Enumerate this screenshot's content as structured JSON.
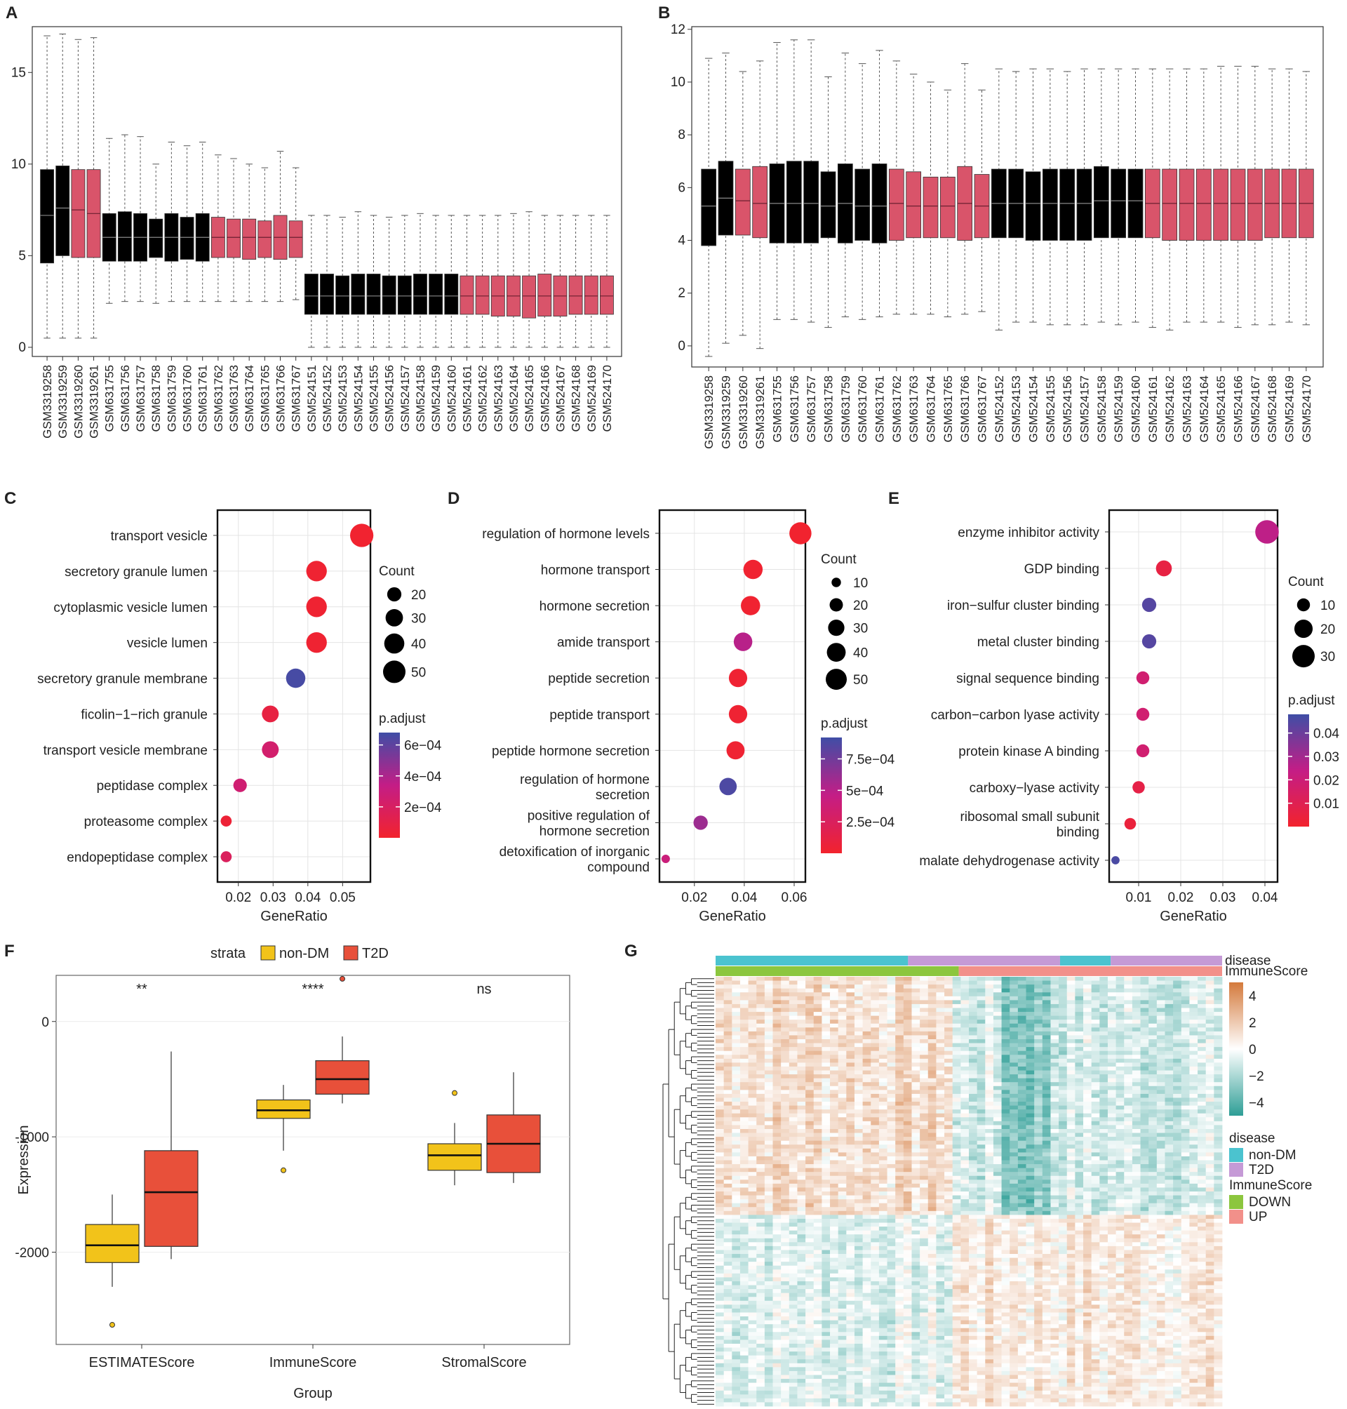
{
  "panels": {
    "A": "A",
    "B": "B",
    "C": "C",
    "D": "D",
    "E": "E",
    "F": "F",
    "G": "G"
  },
  "colors": {
    "black_box": "#000000",
    "pink_box": "#D9546A",
    "nondm": "#F2C31A",
    "t2d": "#E8503A",
    "heat_pos": "#D47A3C",
    "heat_neg": "#2E9E96",
    "nondm_bar": "#4BC3CF",
    "t2d_bar": "#C59AD6",
    "down_bar": "#8CC63E",
    "up_bar": "#F2908A"
  },
  "chart_data": [
    {
      "id": "A",
      "type": "boxplot",
      "ylim": [
        -0.5,
        17.5
      ],
      "yticks": [
        0,
        5,
        10,
        15
      ],
      "samples": [
        "GSM3319258",
        "GSM3319259",
        "GSM3319260",
        "GSM3319261",
        "GSM631755",
        "GSM631756",
        "GSM631757",
        "GSM631758",
        "GSM631759",
        "GSM631760",
        "GSM631761",
        "GSM631762",
        "GSM631763",
        "GSM631764",
        "GSM631765",
        "GSM631766",
        "GSM631767",
        "GSM524151",
        "GSM524152",
        "GSM524153",
        "GSM524154",
        "GSM524155",
        "GSM524156",
        "GSM524157",
        "GSM524158",
        "GSM524159",
        "GSM524160",
        "GSM524161",
        "GSM524162",
        "GSM524163",
        "GSM524164",
        "GSM524165",
        "GSM524166",
        "GSM524167",
        "GSM524168",
        "GSM524169",
        "GSM524170"
      ],
      "groups": [
        "black",
        "black",
        "pink",
        "pink",
        "black",
        "black",
        "black",
        "black",
        "black",
        "black",
        "black",
        "pink",
        "pink",
        "pink",
        "pink",
        "pink",
        "pink",
        "black",
        "black",
        "black",
        "black",
        "black",
        "black",
        "black",
        "black",
        "black",
        "black",
        "pink",
        "pink",
        "pink",
        "pink",
        "pink",
        "pink",
        "pink",
        "pink",
        "pink",
        "pink"
      ],
      "boxes": [
        [
          0.5,
          4.6,
          7.2,
          9.7,
          17.0
        ],
        [
          0.5,
          5.0,
          7.6,
          9.9,
          17.1
        ],
        [
          0.5,
          4.9,
          7.5,
          9.7,
          16.8
        ],
        [
          0.5,
          4.9,
          7.3,
          9.7,
          16.9
        ],
        [
          2.4,
          4.7,
          6.0,
          7.3,
          11.4
        ],
        [
          2.5,
          4.7,
          6.0,
          7.4,
          11.6
        ],
        [
          2.5,
          4.7,
          6.0,
          7.3,
          11.5
        ],
        [
          2.4,
          4.9,
          6.0,
          7.0,
          10.0
        ],
        [
          2.5,
          4.7,
          6.0,
          7.3,
          11.2
        ],
        [
          2.5,
          4.8,
          6.0,
          7.1,
          11.0
        ],
        [
          2.5,
          4.7,
          6.0,
          7.3,
          11.2
        ],
        [
          2.5,
          4.9,
          6.0,
          7.1,
          10.5
        ],
        [
          2.5,
          4.9,
          6.0,
          7.0,
          10.3
        ],
        [
          2.5,
          4.8,
          6.0,
          7.0,
          10.0
        ],
        [
          2.5,
          4.9,
          6.0,
          6.9,
          9.8
        ],
        [
          2.5,
          4.8,
          6.0,
          7.2,
          10.7
        ],
        [
          2.6,
          4.9,
          6.0,
          6.9,
          9.8
        ],
        [
          0,
          1.8,
          2.8,
          4.0,
          7.2
        ],
        [
          0,
          1.8,
          2.8,
          4.0,
          7.2
        ],
        [
          0,
          1.8,
          2.8,
          3.9,
          7.1
        ],
        [
          0,
          1.8,
          2.8,
          4.0,
          7.4
        ],
        [
          0,
          1.8,
          2.8,
          4.0,
          7.2
        ],
        [
          0,
          1.8,
          2.8,
          3.9,
          7.1
        ],
        [
          0,
          1.8,
          2.8,
          3.9,
          7.2
        ],
        [
          0,
          1.8,
          2.8,
          4.0,
          7.3
        ],
        [
          0,
          1.8,
          2.8,
          4.0,
          7.2
        ],
        [
          0,
          1.8,
          2.8,
          4.0,
          7.2
        ],
        [
          0,
          1.8,
          2.8,
          3.9,
          7.2
        ],
        [
          0,
          1.8,
          2.8,
          3.9,
          7.2
        ],
        [
          0,
          1.7,
          2.8,
          3.9,
          7.2
        ],
        [
          0,
          1.7,
          2.8,
          3.9,
          7.3
        ],
        [
          0,
          1.6,
          2.8,
          3.9,
          7.4
        ],
        [
          0,
          1.7,
          2.8,
          4.0,
          7.2
        ],
        [
          0,
          1.7,
          2.8,
          3.9,
          7.2
        ],
        [
          0,
          1.8,
          2.8,
          3.9,
          7.2
        ],
        [
          0,
          1.8,
          2.8,
          3.9,
          7.2
        ],
        [
          0,
          1.8,
          2.8,
          3.9,
          7.2
        ]
      ]
    },
    {
      "id": "B",
      "type": "boxplot",
      "ylim": [
        -0.8,
        12.1
      ],
      "yticks": [
        0,
        2,
        4,
        6,
        8,
        10,
        12
      ],
      "samples": [
        "GSM3319258",
        "GSM3319259",
        "GSM3319260",
        "GSM3319261",
        "GSM631755",
        "GSM631756",
        "GSM631757",
        "GSM631758",
        "GSM631759",
        "GSM631760",
        "GSM631761",
        "GSM631762",
        "GSM631763",
        "GSM631764",
        "GSM631765",
        "GSM631766",
        "GSM631767",
        "GSM524152",
        "GSM524153",
        "GSM524154",
        "GSM524155",
        "GSM524156",
        "GSM524157",
        "GSM524158",
        "GSM524159",
        "GSM524160",
        "GSM524161",
        "GSM524162",
        "GSM524163",
        "GSM524164",
        "GSM524165",
        "GSM524166",
        "GSM524167",
        "GSM524168",
        "GSM524169",
        "GSM524170"
      ],
      "groups": [
        "black",
        "black",
        "pink",
        "pink",
        "black",
        "black",
        "black",
        "black",
        "black",
        "black",
        "black",
        "pink",
        "pink",
        "pink",
        "pink",
        "pink",
        "pink",
        "black",
        "black",
        "black",
        "black",
        "black",
        "black",
        "black",
        "black",
        "black",
        "pink",
        "pink",
        "pink",
        "pink",
        "pink",
        "pink",
        "pink",
        "pink",
        "pink",
        "pink"
      ],
      "boxes": [
        [
          -0.4,
          3.8,
          5.3,
          6.7,
          10.9
        ],
        [
          0.1,
          4.2,
          5.6,
          7.0,
          11.1
        ],
        [
          0.4,
          4.2,
          5.5,
          6.7,
          10.4
        ],
        [
          -0.1,
          4.1,
          5.4,
          6.8,
          10.8
        ],
        [
          1.0,
          3.9,
          5.4,
          6.9,
          11.5
        ],
        [
          1.0,
          3.9,
          5.4,
          7.0,
          11.6
        ],
        [
          0.9,
          3.9,
          5.4,
          7.0,
          11.6
        ],
        [
          0.7,
          4.1,
          5.3,
          6.6,
          10.2
        ],
        [
          1.1,
          3.9,
          5.4,
          6.9,
          11.1
        ],
        [
          1.0,
          4.0,
          5.3,
          6.7,
          10.7
        ],
        [
          1.1,
          3.9,
          5.3,
          6.9,
          11.2
        ],
        [
          1.2,
          4.0,
          5.4,
          6.7,
          10.8
        ],
        [
          1.2,
          4.1,
          5.3,
          6.6,
          10.3
        ],
        [
          1.2,
          4.1,
          5.3,
          6.4,
          10.0
        ],
        [
          1.1,
          4.1,
          5.3,
          6.4,
          9.7
        ],
        [
          1.2,
          4.0,
          5.4,
          6.8,
          10.7
        ],
        [
          1.3,
          4.1,
          5.3,
          6.5,
          9.7
        ],
        [
          0.6,
          4.1,
          5.4,
          6.7,
          10.5
        ],
        [
          0.9,
          4.1,
          5.4,
          6.7,
          10.4
        ],
        [
          0.9,
          4.0,
          5.4,
          6.6,
          10.5
        ],
        [
          0.8,
          4.0,
          5.4,
          6.7,
          10.5
        ],
        [
          0.8,
          4.0,
          5.4,
          6.7,
          10.4
        ],
        [
          0.8,
          4.0,
          5.4,
          6.7,
          10.5
        ],
        [
          0.9,
          4.1,
          5.5,
          6.8,
          10.5
        ],
        [
          0.8,
          4.1,
          5.5,
          6.7,
          10.5
        ],
        [
          0.9,
          4.1,
          5.5,
          6.7,
          10.5
        ],
        [
          0.7,
          4.1,
          5.4,
          6.7,
          10.5
        ],
        [
          0.6,
          4.0,
          5.4,
          6.7,
          10.5
        ],
        [
          0.9,
          4.0,
          5.4,
          6.7,
          10.5
        ],
        [
          0.9,
          4.0,
          5.4,
          6.7,
          10.5
        ],
        [
          0.9,
          4.0,
          5.4,
          6.7,
          10.6
        ],
        [
          0.7,
          4.0,
          5.4,
          6.7,
          10.6
        ],
        [
          0.8,
          4.0,
          5.4,
          6.7,
          10.6
        ],
        [
          0.8,
          4.1,
          5.4,
          6.7,
          10.5
        ],
        [
          0.9,
          4.1,
          5.4,
          6.7,
          10.5
        ],
        [
          0.8,
          4.1,
          5.4,
          6.7,
          10.4
        ]
      ]
    },
    {
      "id": "C",
      "type": "scatter",
      "xlabel": "GeneRatio",
      "xlim": [
        0.014,
        0.058
      ],
      "xticks": [
        0.02,
        0.03,
        0.04,
        0.05
      ],
      "xticklabels": [
        "0.02",
        "0.03",
        "0.04",
        "0.05"
      ],
      "terms": [
        "transport vesicle",
        "secretory granule lumen",
        "cytoplasmic vesicle lumen",
        "vesicle lumen",
        "secretory granule membrane",
        "ficolin−1−rich granule",
        "transport vesicle membrane",
        "peptidase complex",
        "proteasome complex",
        "endopeptidase complex"
      ],
      "x": [
        0.0555,
        0.0425,
        0.0425,
        0.0425,
        0.0365,
        0.0292,
        0.0292,
        0.0205,
        0.0165,
        0.0165
      ],
      "counts": [
        54,
        42,
        42,
        42,
        37,
        28,
        28,
        18,
        12,
        12
      ],
      "padj": [
        1e-05,
        2e-05,
        2e-05,
        2e-05,
        0.00066,
        8e-05,
        0.00024,
        0.00026,
        4e-05,
        0.00018
      ],
      "legend": {
        "count_title": "Count",
        "count_levels": [
          20,
          30,
          40,
          50
        ],
        "count_labels": [
          "20",
          "30",
          "40",
          "50"
        ],
        "padj_title": "p.adjust",
        "padj_ticks": [
          0.0006,
          0.0004,
          0.0002
        ],
        "padj_labels": [
          "6e−04",
          "4e−04",
          "2e−04"
        ],
        "padj_range": [
          0.0,
          0.00068
        ]
      }
    },
    {
      "id": "D",
      "type": "scatter",
      "xlabel": "GeneRatio",
      "xlim": [
        0.006,
        0.0645
      ],
      "xticks": [
        0.02,
        0.04,
        0.06
      ],
      "xticklabels": [
        "0.02",
        "0.04",
        "0.06"
      ],
      "terms": [
        "regulation of hormone levels",
        "hormone transport",
        "hormone secretion",
        "amide transport",
        "peptide secretion",
        "peptide transport",
        "peptide hormone secretion",
        "regulation of hormone\nsecretion",
        "positive regulation of\nhormone secretion",
        "detoxification of inorganic\ncompound"
      ],
      "x": [
        0.0625,
        0.0435,
        0.0425,
        0.0395,
        0.0375,
        0.0375,
        0.0365,
        0.0335,
        0.0225,
        0.0085
      ],
      "counts": [
        55,
        42,
        42,
        39,
        38,
        38,
        37,
        34,
        23,
        8
      ],
      "padj": [
        1e-05,
        2e-05,
        2e-05,
        0.0005,
        3e-05,
        3e-05,
        3e-05,
        0.00087,
        0.0006,
        0.0004
      ],
      "legend": {
        "count_title": "Count",
        "count_levels": [
          10,
          20,
          30,
          40,
          50
        ],
        "count_labels": [
          "10",
          "20",
          "30",
          "40",
          "50"
        ],
        "padj_title": "p.adjust",
        "padj_ticks": [
          0.00075,
          0.0005,
          0.00025
        ],
        "padj_labels": [
          "7.5e−04",
          "5e−04",
          "2.5e−04"
        ],
        "padj_range": [
          0.0,
          0.00092
        ]
      }
    },
    {
      "id": "E",
      "type": "scatter",
      "xlabel": "GeneRatio",
      "xlim": [
        0.003,
        0.043
      ],
      "xticks": [
        0.01,
        0.02,
        0.03,
        0.04
      ],
      "xticklabels": [
        "0.01",
        "0.02",
        "0.03",
        "0.04"
      ],
      "terms": [
        "enzyme inhibitor activity",
        "GDP binding",
        "iron−sulfur cluster binding",
        "metal cluster binding",
        "signal sequence binding",
        "carbon−carbon lyase activity",
        "protein kinase A binding",
        "carboxy−lyase activity",
        "ribosomal small subunit\nbinding",
        "malate dehydrogenase activity"
      ],
      "x": [
        0.0405,
        0.016,
        0.0125,
        0.0125,
        0.011,
        0.011,
        0.011,
        0.01,
        0.008,
        0.0045
      ],
      "counts": [
        33,
        15,
        12,
        12,
        10,
        10,
        10,
        9,
        8,
        4
      ],
      "padj": [
        0.025,
        0.006,
        0.044,
        0.044,
        0.018,
        0.018,
        0.018,
        0.007,
        0.004,
        0.046
      ],
      "legend": {
        "count_title": "Count",
        "count_levels": [
          10,
          20,
          30
        ],
        "count_labels": [
          "10",
          "20",
          "30"
        ],
        "padj_title": "p.adjust",
        "padj_ticks": [
          0.04,
          0.03,
          0.02,
          0.01
        ],
        "padj_labels": [
          "0.04",
          "0.03",
          "0.02",
          "0.01"
        ],
        "padj_range": [
          0.0,
          0.048
        ]
      }
    },
    {
      "id": "F",
      "type": "boxplot",
      "xlabel": "Group",
      "ylabel": "Expression",
      "ylim": [
        -2800,
        400
      ],
      "yticks": [
        -2000,
        -1000,
        0
      ],
      "yticklabels": [
        "-2000",
        "-1000",
        "0"
      ],
      "categories": [
        "ESTIMATEScore",
        "ImmuneScore",
        "StromalScore"
      ],
      "legend": {
        "title": "strata",
        "entries": [
          "non-DM",
          "T2D"
        ]
      },
      "significance": [
        "**",
        "****",
        "ns"
      ],
      "series": [
        {
          "name": "non-DM",
          "boxes": [
            [
              -2300,
              -2090,
              -1940,
              -1760,
              -1500
            ],
            [
              -1120,
              -840,
              -770,
              -680,
              -550
            ],
            [
              -1420,
              -1290,
              -1160,
              -1060,
              -880
            ]
          ],
          "outliers": [
            [
              -2630
            ],
            [
              -1290
            ],
            [
              -620
            ]
          ]
        },
        {
          "name": "T2D",
          "boxes": [
            [
              -2060,
              -1950,
              -1480,
              -1120,
              -260
            ],
            [
              -710,
              -630,
              -500,
              -340,
              -130
            ],
            [
              -1400,
              -1310,
              -1060,
              -810,
              -440
            ]
          ],
          "outliers": [
            [],
            [
              370
            ],
            []
          ]
        }
      ]
    },
    {
      "id": "G",
      "type": "heatmap",
      "n_rows": 110,
      "n_cols": 62,
      "annotations": [
        {
          "title": "disease",
          "segments": [
            {
              "label": "non-DM",
              "frac": 0.38
            },
            {
              "label": "T2D",
              "frac": 0.3
            },
            {
              "label": "non-DM",
              "frac": 0.1
            },
            {
              "label": "T2D",
              "frac": 0.22
            }
          ]
        },
        {
          "title": "ImmuneScore",
          "segments": [
            {
              "label": "DOWN",
              "frac": 0.48
            },
            {
              "label": "UP",
              "frac": 0.52
            }
          ]
        }
      ],
      "color_scale": {
        "ticks": [
          4,
          2,
          0,
          -2,
          -4
        ],
        "labels": [
          "4",
          "2",
          "0",
          "−2",
          "−4"
        ],
        "range": [
          -5,
          5
        ]
      },
      "legend_disease": {
        "title": "disease",
        "entries": [
          "non-DM",
          "T2D"
        ]
      },
      "legend_immune": {
        "title": "ImmuneScore",
        "entries": [
          "DOWN",
          "UP"
        ]
      }
    }
  ]
}
